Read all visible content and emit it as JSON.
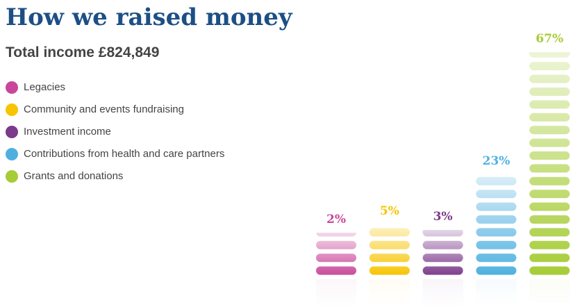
{
  "chart_data": {
    "type": "bar",
    "title": "How we raised money",
    "subtitle": "Total income £824,849",
    "categories": [
      "Legacies",
      "Community and events fundraising",
      "Investment income",
      "Contributions from health and care partners",
      "Grants and donations"
    ],
    "values": [
      2,
      5,
      3,
      23,
      67
    ],
    "value_labels": [
      "2%",
      "5%",
      "3%",
      "23%",
      "67%"
    ],
    "colors": [
      "#c8479a",
      "#f7c400",
      "#7b3a8a",
      "#4fb0e0",
      "#a6cc37"
    ]
  }
}
